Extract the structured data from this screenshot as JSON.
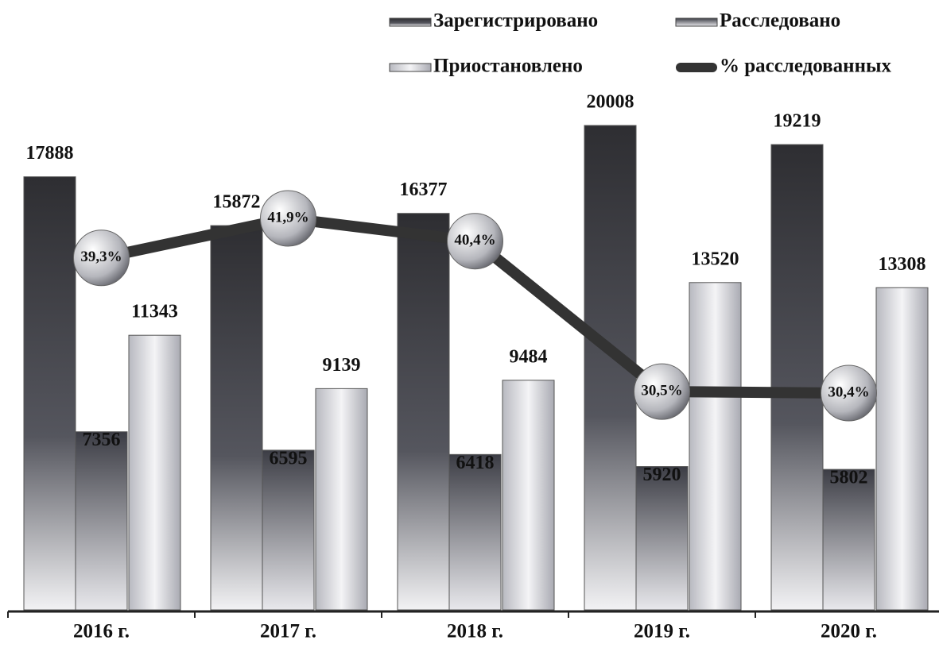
{
  "chart_data": {
    "type": "bar",
    "categories": [
      "2016 г.",
      "2017 г.",
      "2018 г.",
      "2019 г.",
      "2020 г."
    ],
    "series": [
      {
        "name": "Зарегистрировано",
        "color": "#3a3a3e",
        "values": [
          17888,
          15872,
          16377,
          20008,
          19219
        ]
      },
      {
        "name": "Расследовано",
        "color": "#55565e",
        "values": [
          7356,
          6595,
          6418,
          5920,
          5802
        ]
      },
      {
        "name": "Приостановлено",
        "color": "#d9dadf",
        "values": [
          11343,
          9139,
          9484,
          13520,
          13308
        ]
      },
      {
        "name": "% расследованных",
        "color": "#333333",
        "type": "line",
        "axis": "y2",
        "values": [
          39.3,
          41.9,
          40.4,
          30.5,
          30.4
        ],
        "value_labels": [
          "39,3%",
          "41,9%",
          "40,4%",
          "30,5%",
          "30,4%"
        ]
      }
    ],
    "legend": "top-right"
  }
}
